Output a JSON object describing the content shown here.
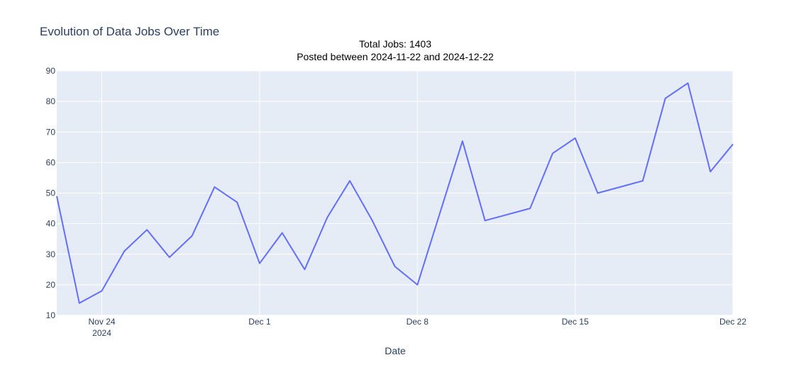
{
  "chart_data": {
    "type": "line",
    "title": "Evolution of Data Jobs Over Time",
    "annotation": {
      "line1": "Total Jobs: 1403",
      "line2": "Posted between 2024-11-22 and 2024-12-22"
    },
    "xlabel": "Date",
    "ylabel": "",
    "x_ticks": [
      {
        "date": "2024-11-24",
        "label": "Nov 24",
        "sublabel": "2024"
      },
      {
        "date": "2024-12-01",
        "label": "Dec 1",
        "sublabel": ""
      },
      {
        "date": "2024-12-08",
        "label": "Dec 8",
        "sublabel": ""
      },
      {
        "date": "2024-12-15",
        "label": "Dec 15",
        "sublabel": ""
      },
      {
        "date": "2024-12-22",
        "label": "Dec 22",
        "sublabel": ""
      }
    ],
    "xlim": [
      "2024-11-22",
      "2024-12-22"
    ],
    "ylim": [
      10,
      90
    ],
    "y_ticks": [
      10,
      20,
      30,
      40,
      50,
      60,
      70,
      80,
      90
    ],
    "grid": true,
    "colors": {
      "line": "#636efa",
      "plot_bg": "#e5ecf6",
      "grid": "#ffffff"
    },
    "series": [
      {
        "x": [
          "2024-11-22",
          "2024-11-23",
          "2024-11-24",
          "2024-11-25",
          "2024-11-26",
          "2024-11-27",
          "2024-11-28",
          "2024-11-29",
          "2024-11-30",
          "2024-12-01",
          "2024-12-02",
          "2024-12-03",
          "2024-12-04",
          "2024-12-05",
          "2024-12-06",
          "2024-12-07",
          "2024-12-08",
          "2024-12-10",
          "2024-12-11",
          "2024-12-13",
          "2024-12-14",
          "2024-12-15",
          "2024-12-16",
          "2024-12-18",
          "2024-12-19",
          "2024-12-20",
          "2024-12-21",
          "2024-12-22"
        ],
        "y": [
          49,
          14,
          18,
          31,
          38,
          29,
          36,
          52,
          47,
          27,
          37,
          25,
          42,
          54,
          41,
          26,
          20,
          67,
          41,
          45,
          63,
          68,
          50,
          54,
          81,
          86,
          57,
          66
        ]
      }
    ]
  }
}
